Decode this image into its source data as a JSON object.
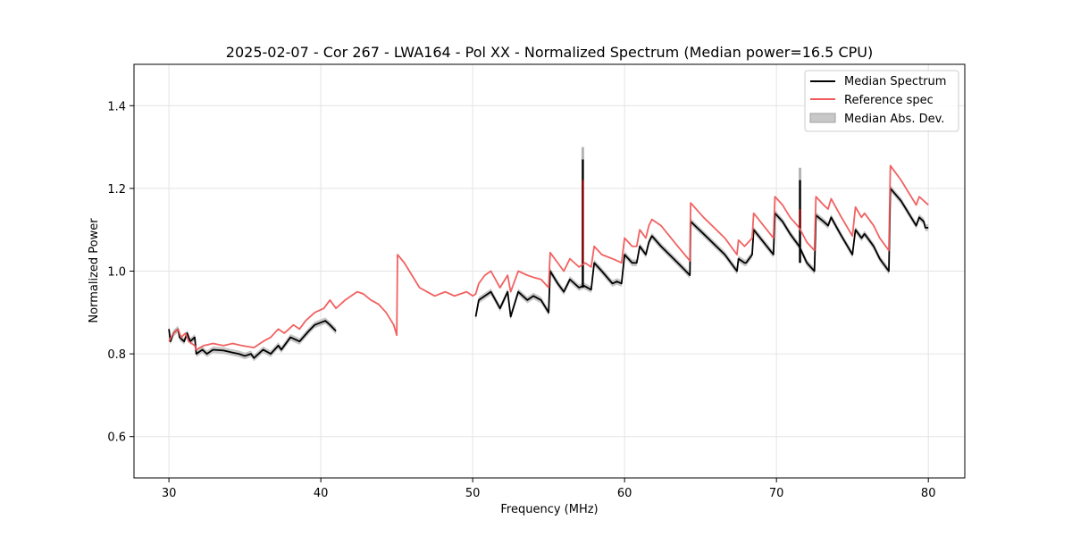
{
  "chart_data": {
    "type": "line",
    "title": "2025-02-07 - Cor 267 - LWA164 - Pol XX - Normalized Spectrum (Median power=16.5 CPU)",
    "xlabel": "Frequency (MHz)",
    "ylabel": "Normalized Power",
    "xlim": [
      27.7,
      82.4
    ],
    "ylim": [
      0.5,
      1.5
    ],
    "xticks": [
      30,
      40,
      50,
      60,
      70,
      80
    ],
    "yticks": [
      0.6,
      0.8,
      1.0,
      1.2,
      1.4
    ],
    "xtick_labels": [
      "30",
      "40",
      "50",
      "60",
      "70",
      "80"
    ],
    "ytick_labels": [
      "0.6",
      "0.8",
      "1.0",
      "1.2",
      "1.4"
    ],
    "grid": true,
    "legend_position": "top-right",
    "legend": [
      "Median Spectrum",
      "Reference spec",
      "Median Abs. Dev."
    ],
    "colors": {
      "median": "#000000",
      "reference": "#f05a5a",
      "mad": "#b4b4b4",
      "overlap": "#8b0000"
    },
    "series": [
      {
        "name": "Median Spectrum",
        "segments": [
          [
            [
              30.0,
              0.86
            ],
            [
              30.1,
              0.83
            ],
            [
              30.3,
              0.85
            ],
            [
              30.6,
              0.86
            ],
            [
              30.7,
              0.84
            ],
            [
              31.0,
              0.83
            ],
            [
              31.2,
              0.85
            ],
            [
              31.4,
              0.83
            ],
            [
              31.7,
              0.84
            ],
            [
              31.8,
              0.8
            ],
            [
              32.2,
              0.81
            ],
            [
              32.5,
              0.8
            ],
            [
              32.9,
              0.81
            ],
            [
              33.6,
              0.808
            ],
            [
              34.2,
              0.803
            ],
            [
              34.6,
              0.8
            ],
            [
              35.0,
              0.795
            ],
            [
              35.4,
              0.8
            ],
            [
              35.6,
              0.79
            ],
            [
              36.2,
              0.81
            ],
            [
              36.7,
              0.8
            ],
            [
              37.2,
              0.82
            ],
            [
              37.4,
              0.81
            ],
            [
              38.0,
              0.84
            ],
            [
              38.6,
              0.83
            ],
            [
              39.2,
              0.855
            ],
            [
              39.6,
              0.87
            ],
            [
              40.3,
              0.88
            ],
            [
              40.6,
              0.87
            ],
            [
              41.0,
              0.855
            ]
          ],
          [
            [
              50.2,
              0.89
            ],
            [
              50.4,
              0.93
            ],
            [
              50.8,
              0.94
            ],
            [
              51.2,
              0.95
            ],
            [
              51.8,
              0.91
            ],
            [
              52.3,
              0.95
            ],
            [
              52.5,
              0.89
            ],
            [
              53.0,
              0.95
            ],
            [
              53.6,
              0.93
            ],
            [
              54.0,
              0.94
            ],
            [
              54.5,
              0.93
            ],
            [
              55.0,
              0.9
            ],
            [
              55.1,
              1.0
            ],
            [
              55.6,
              0.97
            ],
            [
              56.0,
              0.95
            ],
            [
              56.4,
              0.98
            ],
            [
              57.0,
              0.96
            ],
            [
              57.3,
              0.965
            ],
            [
              57.8,
              0.955
            ],
            [
              58.0,
              1.02
            ],
            [
              58.5,
              1.0
            ],
            [
              59.2,
              0.97
            ],
            [
              59.5,
              0.975
            ],
            [
              59.8,
              0.97
            ],
            [
              60.0,
              1.04
            ],
            [
              60.5,
              1.02
            ],
            [
              60.8,
              1.02
            ],
            [
              61.0,
              1.06
            ],
            [
              61.4,
              1.04
            ],
            [
              61.6,
              1.07
            ],
            [
              61.8,
              1.085
            ],
            [
              62.4,
              1.06
            ],
            [
              63.5,
              1.02
            ],
            [
              64.3,
              0.99
            ],
            [
              64.35,
              1.12
            ],
            [
              65.2,
              1.09
            ],
            [
              66.6,
              1.04
            ],
            [
              67.4,
              1.0
            ],
            [
              67.5,
              1.03
            ],
            [
              67.9,
              1.02
            ],
            [
              68.0,
              1.02
            ],
            [
              68.4,
              1.04
            ],
            [
              68.5,
              1.1
            ],
            [
              69.8,
              1.04
            ],
            [
              69.9,
              1.14
            ],
            [
              70.4,
              1.12
            ],
            [
              70.9,
              1.09
            ],
            [
              71.5,
              1.06
            ],
            [
              72.0,
              1.02
            ],
            [
              72.5,
              1.0
            ],
            [
              72.6,
              1.135
            ],
            [
              73.1,
              1.12
            ],
            [
              73.4,
              1.11
            ],
            [
              73.6,
              1.13
            ],
            [
              74.2,
              1.09
            ],
            [
              75.0,
              1.04
            ],
            [
              75.2,
              1.1
            ],
            [
              75.6,
              1.08
            ],
            [
              75.8,
              1.09
            ],
            [
              76.4,
              1.06
            ],
            [
              76.8,
              1.03
            ],
            [
              77.4,
              1.0
            ],
            [
              77.5,
              1.2
            ],
            [
              78.2,
              1.17
            ],
            [
              78.7,
              1.14
            ],
            [
              79.2,
              1.11
            ],
            [
              79.4,
              1.13
            ],
            [
              79.7,
              1.12
            ],
            [
              79.8,
              1.105
            ],
            [
              80.0,
              1.105
            ]
          ]
        ],
        "spikes": [
          [
            57.25,
            0.96,
            1.27
          ],
          [
            71.55,
            1.02,
            1.22
          ]
        ]
      },
      {
        "name": "Reference spec",
        "segments": [
          [
            [
              30.0,
              0.83
            ],
            [
              30.3,
              0.85
            ],
            [
              30.6,
              0.86
            ],
            [
              30.8,
              0.84
            ],
            [
              31.1,
              0.85
            ],
            [
              31.3,
              0.83
            ],
            [
              31.7,
              0.82
            ],
            [
              31.8,
              0.81
            ],
            [
              32.3,
              0.82
            ],
            [
              32.9,
              0.825
            ],
            [
              33.6,
              0.82
            ],
            [
              34.2,
              0.825
            ],
            [
              34.8,
              0.82
            ],
            [
              35.6,
              0.815
            ],
            [
              36.2,
              0.83
            ],
            [
              36.7,
              0.84
            ],
            [
              37.2,
              0.86
            ],
            [
              37.6,
              0.85
            ],
            [
              38.2,
              0.87
            ],
            [
              38.6,
              0.86
            ],
            [
              39.0,
              0.88
            ],
            [
              39.6,
              0.9
            ],
            [
              40.2,
              0.91
            ],
            [
              40.6,
              0.93
            ],
            [
              41.0,
              0.91
            ],
            [
              41.6,
              0.93
            ],
            [
              42.0,
              0.94
            ],
            [
              42.4,
              0.95
            ],
            [
              42.8,
              0.945
            ],
            [
              43.3,
              0.93
            ],
            [
              43.8,
              0.92
            ],
            [
              44.3,
              0.9
            ],
            [
              44.8,
              0.87
            ],
            [
              45.0,
              0.845
            ],
            [
              45.05,
              1.04
            ],
            [
              45.5,
              1.02
            ],
            [
              46.0,
              0.99
            ],
            [
              46.5,
              0.96
            ],
            [
              47.0,
              0.95
            ],
            [
              47.5,
              0.94
            ],
            [
              48.2,
              0.95
            ],
            [
              48.8,
              0.94
            ],
            [
              49.2,
              0.945
            ],
            [
              49.6,
              0.95
            ],
            [
              50.0,
              0.94
            ],
            [
              50.2,
              0.945
            ],
            [
              50.4,
              0.97
            ],
            [
              50.8,
              0.99
            ],
            [
              51.2,
              1.0
            ],
            [
              51.8,
              0.96
            ],
            [
              52.3,
              0.99
            ],
            [
              52.5,
              0.95
            ],
            [
              53.0,
              1.0
            ],
            [
              53.6,
              0.99
            ],
            [
              54.0,
              0.985
            ],
            [
              54.5,
              0.98
            ],
            [
              55.0,
              0.96
            ],
            [
              55.1,
              1.045
            ],
            [
              55.6,
              1.02
            ],
            [
              56.0,
              1.0
            ],
            [
              56.4,
              1.03
            ],
            [
              57.0,
              1.01
            ],
            [
              57.4,
              1.02
            ],
            [
              57.8,
              1.01
            ],
            [
              58.0,
              1.06
            ],
            [
              58.5,
              1.04
            ],
            [
              59.2,
              1.03
            ],
            [
              59.8,
              1.02
            ],
            [
              60.0,
              1.08
            ],
            [
              60.5,
              1.06
            ],
            [
              60.8,
              1.06
            ],
            [
              61.0,
              1.1
            ],
            [
              61.4,
              1.08
            ],
            [
              61.6,
              1.11
            ],
            [
              61.8,
              1.125
            ],
            [
              62.4,
              1.11
            ],
            [
              63.5,
              1.06
            ],
            [
              64.3,
              1.025
            ],
            [
              64.35,
              1.165
            ],
            [
              65.2,
              1.13
            ],
            [
              66.6,
              1.08
            ],
            [
              67.4,
              1.04
            ],
            [
              67.5,
              1.075
            ],
            [
              67.9,
              1.06
            ],
            [
              68.4,
              1.08
            ],
            [
              68.5,
              1.14
            ],
            [
              69.8,
              1.08
            ],
            [
              69.9,
              1.18
            ],
            [
              70.4,
              1.16
            ],
            [
              70.9,
              1.13
            ],
            [
              71.5,
              1.105
            ],
            [
              72.0,
              1.07
            ],
            [
              72.5,
              1.05
            ],
            [
              72.6,
              1.18
            ],
            [
              73.1,
              1.16
            ],
            [
              73.4,
              1.15
            ],
            [
              73.6,
              1.175
            ],
            [
              74.2,
              1.135
            ],
            [
              75.0,
              1.085
            ],
            [
              75.2,
              1.155
            ],
            [
              75.6,
              1.13
            ],
            [
              75.8,
              1.14
            ],
            [
              76.4,
              1.11
            ],
            [
              76.8,
              1.08
            ],
            [
              77.4,
              1.05
            ],
            [
              77.5,
              1.255
            ],
            [
              78.2,
              1.22
            ],
            [
              78.7,
              1.19
            ],
            [
              79.2,
              1.16
            ],
            [
              79.4,
              1.18
            ],
            [
              79.7,
              1.17
            ],
            [
              80.0,
              1.16
            ]
          ]
        ],
        "spikes": [
          [
            57.25,
            1.02,
            1.22
          ],
          [
            71.55,
            1.105,
            1.15
          ]
        ]
      },
      {
        "name": "Median Abs. Dev.",
        "half_width": 0.008,
        "spikes": [
          [
            57.25,
            0.96,
            1.3
          ],
          [
            71.55,
            1.02,
            1.25
          ]
        ]
      }
    ]
  }
}
